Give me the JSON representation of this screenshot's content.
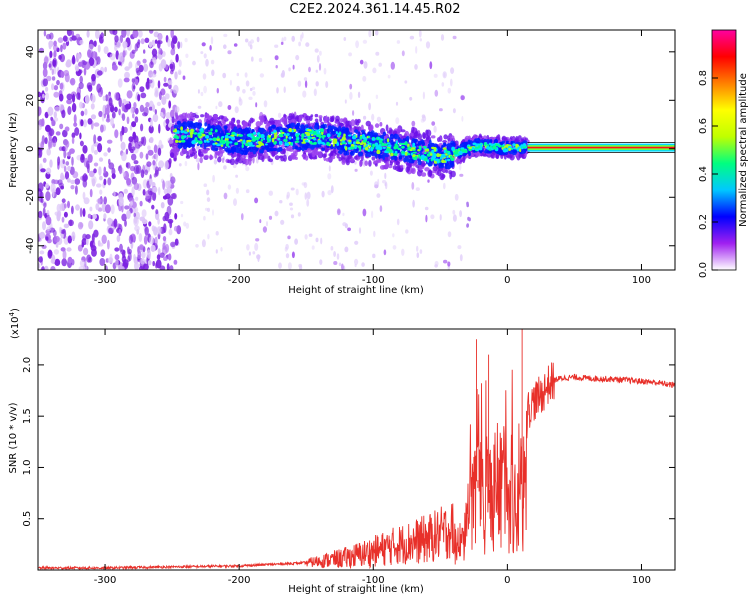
{
  "title": "C2E2.2024.361.14.45.R02",
  "chart_data": [
    {
      "type": "heatmap",
      "xlabel": "Height of straight line (km)",
      "ylabel": "Frequency (Hz)",
      "xlim": [
        -350,
        125
      ],
      "ylim": [
        -50,
        49
      ],
      "x_ticks": [
        -300,
        -200,
        -100,
        0,
        100
      ],
      "y_ticks": [
        -40,
        -20,
        0,
        20,
        40
      ],
      "colorbar": {
        "label": "Normalized spectral amplitude",
        "range": [
          0,
          1
        ],
        "ticks": [
          "0.0",
          "0.2",
          "0.4",
          "0.6",
          "0.8"
        ],
        "colors": [
          "#ffffff",
          "#a020f0",
          "#0000ff",
          "#00c8ff",
          "#00ff80",
          "#c0ff00",
          "#ffff00",
          "#ff8000",
          "#ff0000",
          "#ff00a0"
        ]
      },
      "trend": {
        "x": [
          -250,
          -220,
          -200,
          -180,
          -160,
          -140,
          -120,
          -100,
          -80,
          -60,
          -45,
          -35,
          -25,
          -15,
          0,
          15,
          125
        ],
        "y": [
          6,
          5,
          3,
          4,
          5,
          5,
          3,
          2,
          0,
          -2,
          -3,
          -1,
          1,
          1,
          0.5,
          0.5,
          0.5
        ]
      },
      "noise_region_x": [
        -350,
        -245
      ],
      "steady_line_x": [
        15,
        125
      ],
      "steady_line_y": 0.5
    },
    {
      "type": "line",
      "xlabel": "Height of straight line (km)",
      "ylabel": "SNR (10 * v/v)",
      "y_multiplier": "(x10",
      "y_multiplier_exp": "4",
      "xlim": [
        -350,
        125
      ],
      "ylim": [
        0,
        2.35
      ],
      "x_ticks": [
        -300,
        -200,
        -100,
        0,
        100
      ],
      "y_ticks": [
        "0.5",
        "1.0",
        "1.5",
        "2.0"
      ],
      "color": "#e8302a",
      "series": [
        {
          "x": [
            -350,
            -300,
            -250,
            -200,
            -150,
            -120,
            -100,
            -80,
            -60,
            -50,
            -40,
            -35,
            -30,
            -28,
            -25,
            -20,
            -15,
            -10,
            -5,
            0,
            5,
            10,
            15,
            20,
            25,
            30,
            35,
            40,
            50,
            60,
            80,
            100,
            110,
            125
          ],
          "y": [
            0.02,
            0.02,
            0.03,
            0.04,
            0.07,
            0.12,
            0.18,
            0.25,
            0.3,
            0.35,
            0.4,
            0.5,
            0.7,
            1.2,
            1.4,
            1.5,
            1.3,
            1.3,
            1.4,
            1.45,
            1.5,
            1.6,
            1.55,
            1.65,
            1.7,
            1.8,
            1.85,
            1.87,
            1.88,
            1.87,
            1.86,
            1.84,
            1.83,
            1.8
          ]
        }
      ]
    }
  ]
}
